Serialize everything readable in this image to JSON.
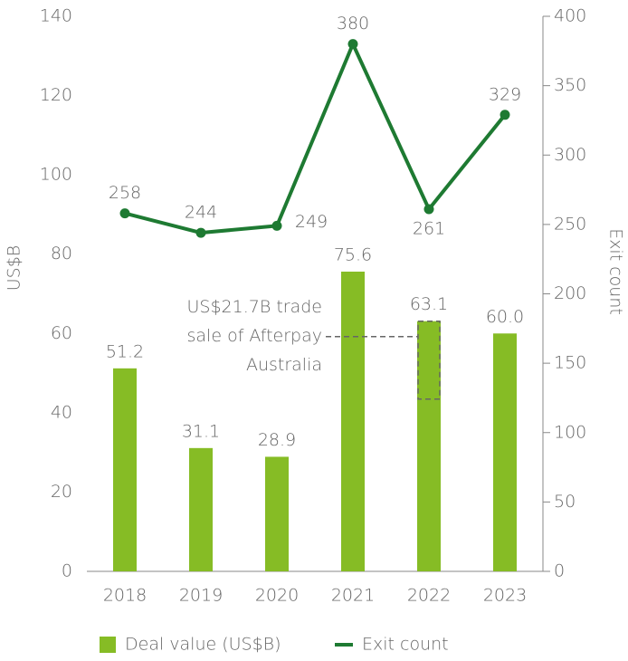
{
  "chart_data": {
    "type": "bar",
    "categories": [
      "2018",
      "2019",
      "2020",
      "2021",
      "2022",
      "2023"
    ],
    "series": [
      {
        "name": "Deal value (US$B)",
        "type": "bar",
        "color": "#86bc25",
        "values": [
          51.2,
          31.1,
          28.9,
          75.6,
          63.1,
          60.0
        ],
        "value_labels": [
          "51.2",
          "31.1",
          "28.9",
          "75.6",
          "63.1",
          "60.0"
        ]
      },
      {
        "name": "Exit count",
        "type": "line",
        "axis": "y2",
        "color": "#1e7a32",
        "values": [
          258,
          244,
          249,
          380,
          261,
          329
        ]
      }
    ],
    "ylim": [
      0,
      140
    ],
    "yticks": [
      0,
      20,
      40,
      60,
      80,
      100,
      120,
      140
    ],
    "y2lim": [
      0,
      400
    ],
    "y2ticks": [
      0,
      50,
      100,
      150,
      200,
      250,
      300,
      350,
      400
    ],
    "ylabel": "US$B",
    "y2label": "Exit count",
    "annotation": [
      "US$21.7B trade",
      "sale of Afterpay",
      "Australia"
    ],
    "legend": "bottom"
  }
}
